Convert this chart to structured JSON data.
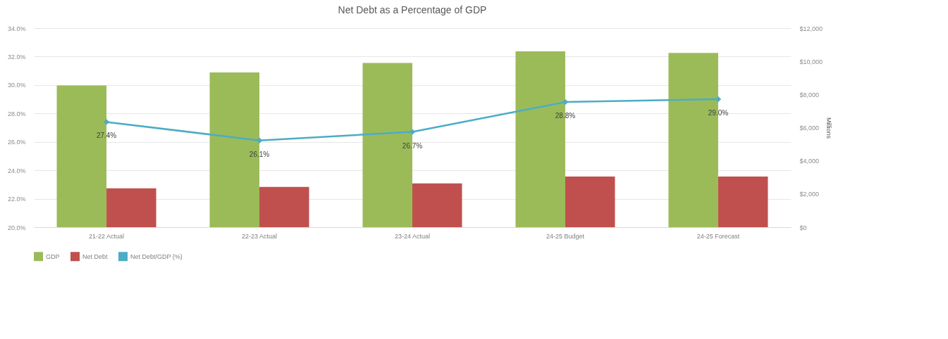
{
  "chart_data": {
    "type": "bar",
    "title": "Net Debt as a Percentage of GDP",
    "categories": [
      "21-22 Actual",
      "22-23 Actual",
      "23-24 Actual",
      "24-25 Budget",
      "24-25 Forecast"
    ],
    "series": [
      {
        "name": "GDP",
        "type": "bar",
        "axis": "y2",
        "color": "#9bbb59",
        "values": [
          8540,
          9330,
          9900,
          10600,
          10510
        ]
      },
      {
        "name": "Net Debt",
        "type": "bar",
        "axis": "y2",
        "color": "#c0504d",
        "values": [
          2340,
          2430,
          2640,
          3050,
          3050
        ]
      },
      {
        "name": "Net Debt/GDP (%)",
        "type": "line",
        "axis": "y",
        "color": "#4bacc6",
        "marker": "diamond",
        "values": [
          27.4,
          26.1,
          26.7,
          28.8,
          29.0
        ],
        "value_labels": [
          "27.4%",
          "26.1%",
          "26.7%",
          "28.8%",
          "29.0%"
        ]
      }
    ],
    "y2label": "Millions",
    "ylim": [
      20,
      34
    ],
    "yticks": [
      {
        "value": 20,
        "label": "20.0%"
      },
      {
        "value": 22,
        "label": "22.0%"
      },
      {
        "value": 24,
        "label": "24.0%"
      },
      {
        "value": 26,
        "label": "26.0%"
      },
      {
        "value": 28,
        "label": "28.0%"
      },
      {
        "value": 30,
        "label": "30.0%"
      },
      {
        "value": 32,
        "label": "32.0%"
      },
      {
        "value": 34,
        "label": "34.0%"
      }
    ],
    "y2lim": [
      0,
      12000
    ],
    "y2ticks": [
      {
        "value": 0,
        "label": "$0"
      },
      {
        "value": 2000,
        "label": "$2,000"
      },
      {
        "value": 4000,
        "label": "$4,000"
      },
      {
        "value": 6000,
        "label": "$6,000"
      },
      {
        "value": 8000,
        "label": "$8,000"
      },
      {
        "value": 10000,
        "label": "$10,000"
      },
      {
        "value": 12000,
        "label": "$12,000"
      }
    ],
    "grid": "y",
    "legend": "bottom"
  }
}
